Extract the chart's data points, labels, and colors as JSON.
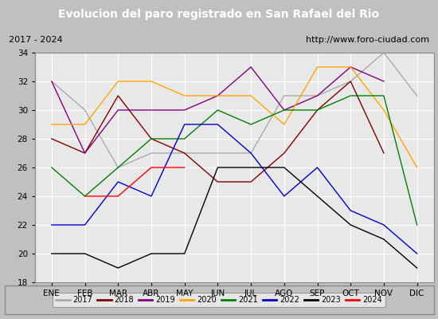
{
  "title": "Evolucion del paro registrado en San Rafael del Rio",
  "subtitle_left": "2017 - 2024",
  "subtitle_right": "http://www.foro-ciudad.com",
  "months": [
    "ENE",
    "FEB",
    "MAR",
    "ABR",
    "MAY",
    "JUN",
    "JUL",
    "AGO",
    "SEP",
    "OCT",
    "NOV",
    "DIC"
  ],
  "ylim": [
    18,
    34
  ],
  "yticks": [
    18,
    20,
    22,
    24,
    26,
    28,
    30,
    32,
    34
  ],
  "series": {
    "2017": {
      "color": "#aaaaaa",
      "values": [
        32,
        30,
        26,
        27,
        27,
        27,
        27,
        31,
        31,
        32,
        34,
        31
      ]
    },
    "2018": {
      "color": "#800000",
      "values": [
        28,
        27,
        31,
        28,
        27,
        25,
        25,
        27,
        30,
        32,
        27,
        null
      ]
    },
    "2019": {
      "color": "#800080",
      "values": [
        32,
        27,
        30,
        30,
        30,
        31,
        33,
        30,
        31,
        33,
        32,
        null
      ]
    },
    "2020": {
      "color": "#ffa500",
      "values": [
        29,
        29,
        32,
        32,
        31,
        31,
        31,
        29,
        33,
        33,
        30,
        26
      ]
    },
    "2021": {
      "color": "#008000",
      "values": [
        26,
        24,
        26,
        28,
        28,
        30,
        29,
        30,
        30,
        31,
        31,
        22
      ]
    },
    "2022": {
      "color": "#0000cd",
      "values": [
        22,
        22,
        25,
        24,
        29,
        29,
        27,
        24,
        26,
        23,
        22,
        20
      ]
    },
    "2023": {
      "color": "#000000",
      "values": [
        20,
        20,
        19,
        20,
        20,
        26,
        26,
        26,
        24,
        22,
        21,
        19
      ]
    },
    "2024": {
      "color": "#ff0000",
      "values": [
        null,
        24,
        24,
        26,
        26,
        null,
        null,
        null,
        null,
        null,
        null,
        null
      ]
    }
  },
  "title_bg": "#4472c4",
  "title_color": "#ffffff",
  "subtitle_bg": "#d4d4d4",
  "plot_bg": "#e8e8e8",
  "legend_bg": "#f0f0f0",
  "grid_color": "#ffffff",
  "title_fontsize": 10,
  "subtitle_fontsize": 8,
  "legend_fontsize": 7,
  "tick_fontsize": 7.5
}
